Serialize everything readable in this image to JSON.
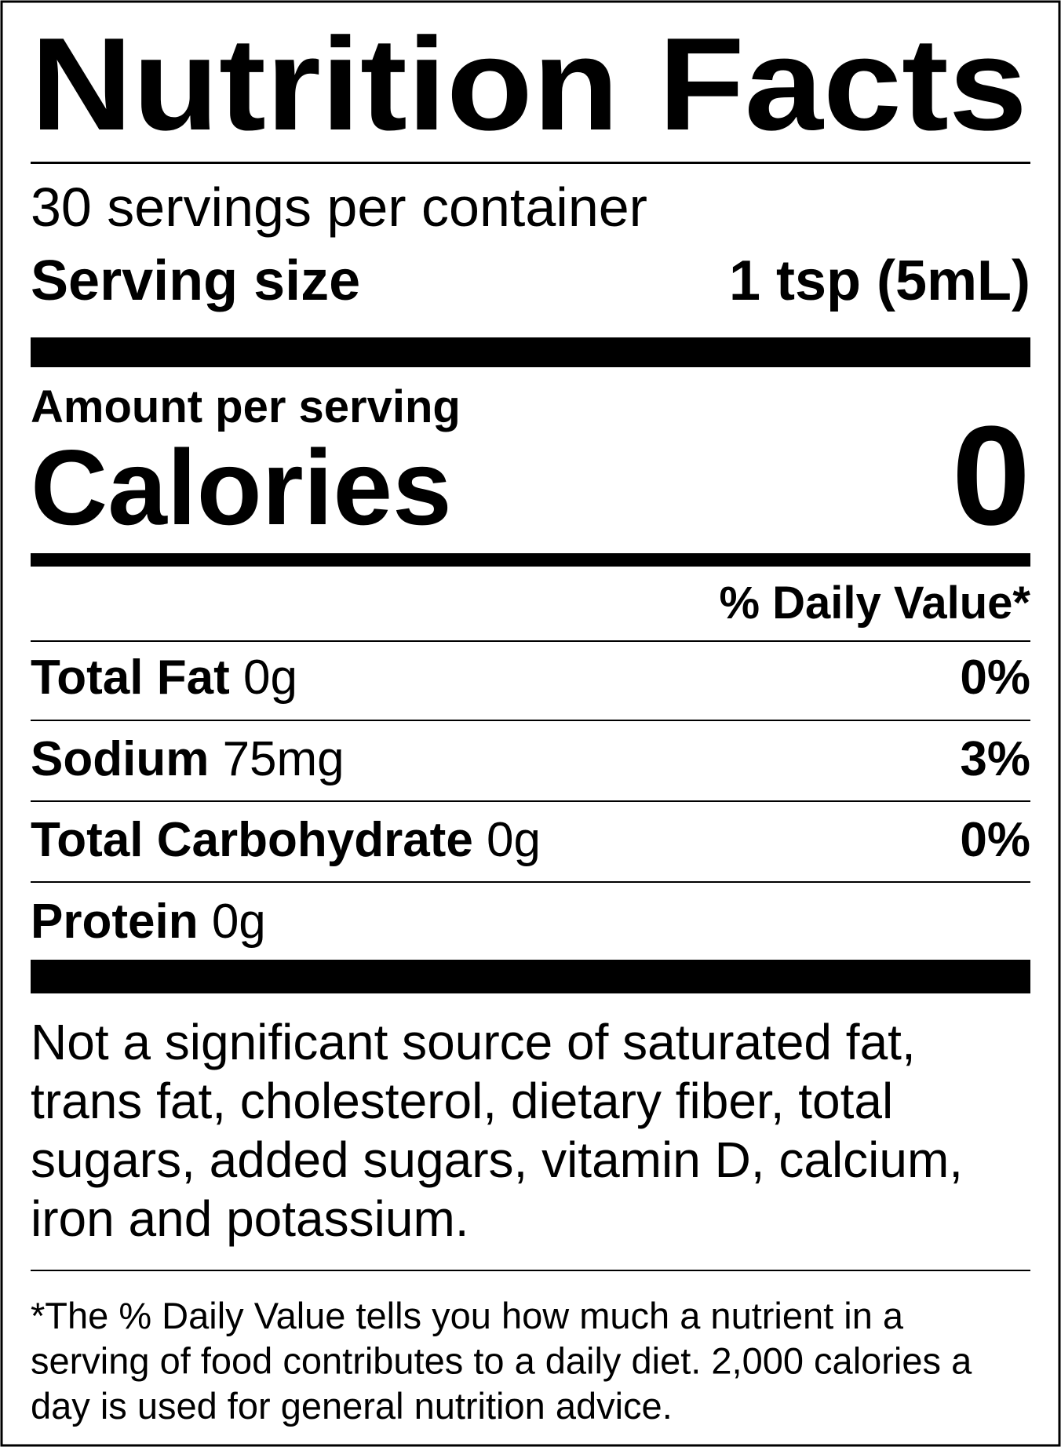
{
  "title": "Nutrition Facts",
  "servings_per_container": "30 servings per container",
  "serving_size": {
    "label": "Serving size",
    "value": "1 tsp (5mL)"
  },
  "amount_per_serving": "Amount per serving",
  "calories": {
    "label": "Calories",
    "value": 0
  },
  "daily_value_header": "% Daily Value*",
  "nutrients": [
    {
      "name": "Total Fat",
      "amount": "0g",
      "dv": "0%"
    },
    {
      "name": "Sodium",
      "amount": "75mg",
      "dv": "3%"
    },
    {
      "name": "Total Carbohydrate",
      "amount": "0g",
      "dv": "0%"
    },
    {
      "name": "Protein",
      "amount": "0g"
    }
  ],
  "note": [
    "Not a significant source of saturated fat,",
    "trans fat, cholesterol, dietary fiber, total",
    "sugars, added sugars, vitamin D, calcium,",
    "iron and potassium."
  ],
  "footnote": [
    "*The % Daily Value tells you how much a nutrient in a",
    "serving of food contributes to a daily diet. 2,000 calories a",
    "day is used for general nutrition advice."
  ]
}
